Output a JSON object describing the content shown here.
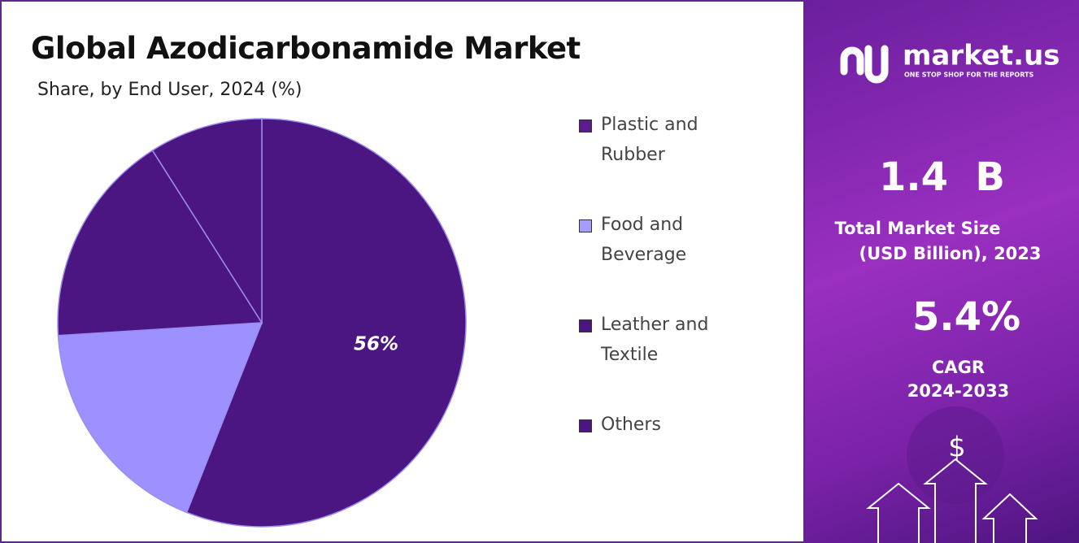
{
  "chart_data": {
    "type": "pie",
    "title": "Global Azodicarbonamide Market",
    "subtitle": "Share, by End User, 2024 (%)",
    "categories": [
      "Plastic and Rubber",
      "Food and Beverage",
      "Leather and Textile",
      "Others"
    ],
    "values": [
      56,
      18,
      17,
      9
    ],
    "value_labels": [
      "56%",
      null,
      null,
      null
    ],
    "colors": [
      "#4b1582",
      "#9c91ff",
      "#4b1582",
      "#4b1582"
    ],
    "legend_colors": [
      "#5a1c8f",
      "#a69cff",
      "#4b1582",
      "#4b1582"
    ],
    "legend": "right"
  },
  "sidebar": {
    "brand": "market.us",
    "tagline": "ONE STOP SHOP FOR THE REPORTS",
    "market_size": "1.4  B",
    "market_size_label": [
      "Total Market Size",
      "(USD Billion), 2023"
    ],
    "cagr": "5.4%",
    "cagr_label": [
      "CAGR",
      "2024-2033"
    ],
    "symbol": "$"
  }
}
